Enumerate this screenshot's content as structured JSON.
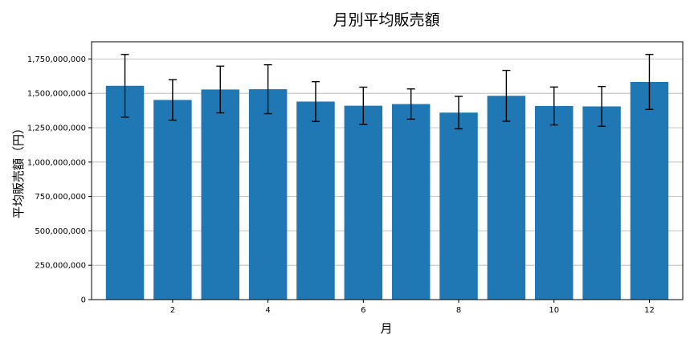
{
  "chart_data": {
    "type": "bar",
    "title": "月別平均販売額",
    "xlabel": "月",
    "ylabel": "平均販売額（円）",
    "x": [
      1,
      2,
      3,
      4,
      5,
      6,
      7,
      8,
      9,
      10,
      11,
      12
    ],
    "values": [
      1555000000,
      1452000000,
      1528000000,
      1530000000,
      1440000000,
      1410000000,
      1422000000,
      1360000000,
      1482000000,
      1408000000,
      1405000000,
      1583000000
    ],
    "error": [
      228000000,
      147000000,
      170000000,
      178000000,
      145000000,
      135000000,
      110000000,
      118000000,
      185000000,
      138000000,
      145000000,
      200000000
    ],
    "xticks": [
      2,
      4,
      6,
      8,
      10,
      12
    ],
    "xtick_labels": [
      "2",
      "4",
      "6",
      "8",
      "10",
      "12"
    ],
    "yticks": [
      0,
      250000000,
      500000000,
      750000000,
      1000000000,
      1250000000,
      1500000000,
      1750000000
    ],
    "ytick_labels": [
      "0",
      "250,000,000",
      "500,000,000",
      "750,000,000",
      "1,000,000,000",
      "1,250,000,000",
      "1,500,000,000",
      "1,750,000,000"
    ],
    "xlim": [
      0.3,
      12.7
    ],
    "ylim": [
      0,
      1875000000
    ],
    "grid": "horizontal",
    "bar_color": "#1f77b4",
    "errorbar_color": "#000000",
    "grid_color": "#b0b0b0"
  }
}
